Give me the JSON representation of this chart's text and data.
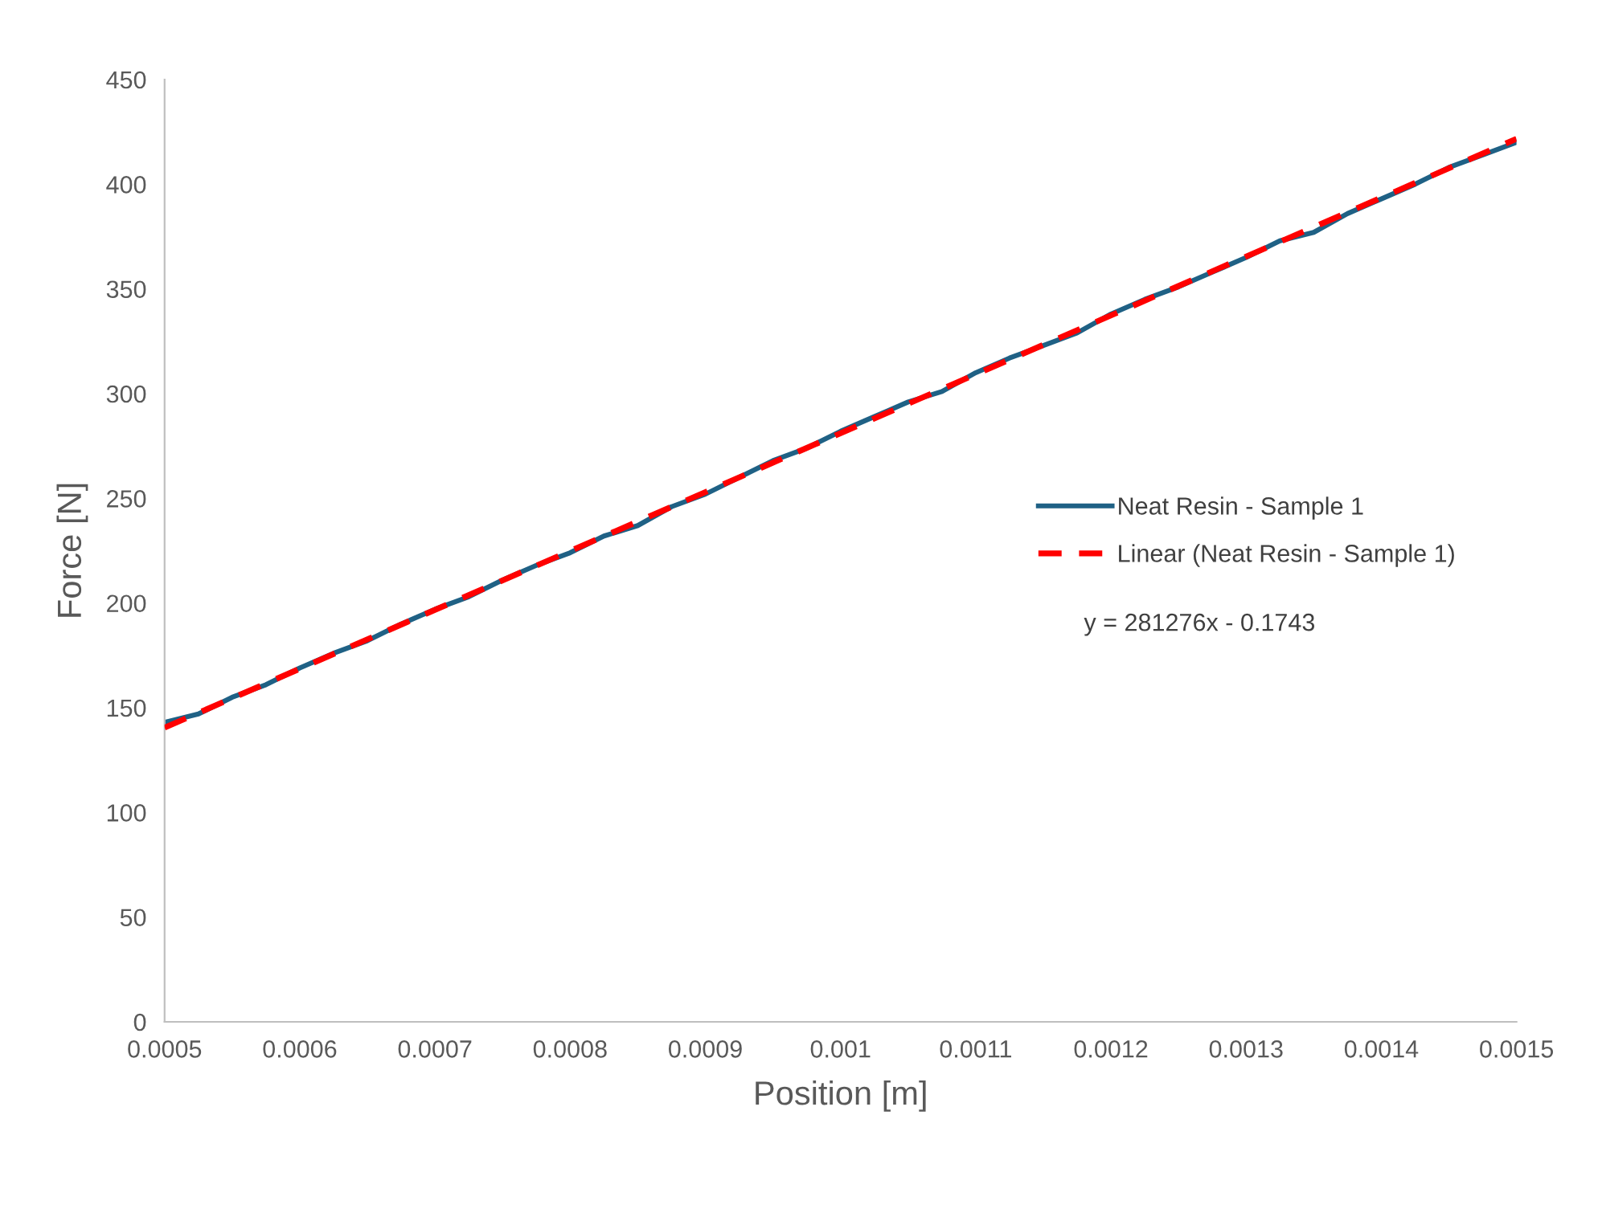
{
  "chart_data": {
    "type": "line",
    "xlabel": "Position [m]",
    "ylabel": "Force [N]",
    "x": [
      0.0005,
      0.000525,
      0.00055,
      0.000575,
      0.0006,
      0.000625,
      0.00065,
      0.000675,
      0.0007,
      0.000725,
      0.00075,
      0.000775,
      0.0008,
      0.000825,
      0.00085,
      0.000875,
      0.0009,
      0.000925,
      0.00095,
      0.000975,
      0.001,
      0.001025,
      0.00105,
      0.001075,
      0.0011,
      0.001125,
      0.00115,
      0.001175,
      0.0012,
      0.001225,
      0.00125,
      0.001275,
      0.0013,
      0.001325,
      0.00135,
      0.001375,
      0.0014,
      0.001425,
      0.00145,
      0.001475,
      0.0015
    ],
    "series": [
      {
        "name": "Neat Resin - Sample 1",
        "color": "#1f6185",
        "line_style": "solid",
        "values": [
          143,
          147,
          155,
          161,
          169,
          176,
          182,
          190,
          197,
          203,
          211,
          218,
          224,
          232,
          237,
          246,
          252,
          260,
          268,
          274,
          282,
          289,
          296,
          301,
          310,
          317,
          323,
          329,
          338,
          345,
          351,
          358,
          365,
          373,
          377,
          386,
          393,
          400,
          408,
          414,
          420
        ]
      },
      {
        "name": "Linear (Neat Resin - Sample 1)",
        "type": "line",
        "color": "#ff0000",
        "line_style": "dashed",
        "x": [
          0.0005,
          0.0015
        ],
        "values": [
          140.5,
          421.7
        ]
      }
    ],
    "annotations": [
      "y = 281276x - 0.1743"
    ],
    "xlim": [
      0.0005,
      0.0015
    ],
    "xticks": [
      {
        "value": 0.0005,
        "label": "0.0005"
      },
      {
        "value": 0.0006,
        "label": "0.0006"
      },
      {
        "value": 0.0007,
        "label": "0.0007"
      },
      {
        "value": 0.0008,
        "label": "0.0008"
      },
      {
        "value": 0.0009,
        "label": "0.0009"
      },
      {
        "value": 0.001,
        "label": "0.001"
      },
      {
        "value": 0.0011,
        "label": "0.0011"
      },
      {
        "value": 0.0012,
        "label": "0.0012"
      },
      {
        "value": 0.0013,
        "label": "0.0013"
      },
      {
        "value": 0.0014,
        "label": "0.0014"
      },
      {
        "value": 0.0015,
        "label": "0.0015"
      }
    ],
    "ylim": [
      0,
      450
    ],
    "yticks": [
      0,
      50,
      100,
      150,
      200,
      250,
      300,
      350,
      400,
      450
    ],
    "grid": false,
    "legend": "right"
  }
}
